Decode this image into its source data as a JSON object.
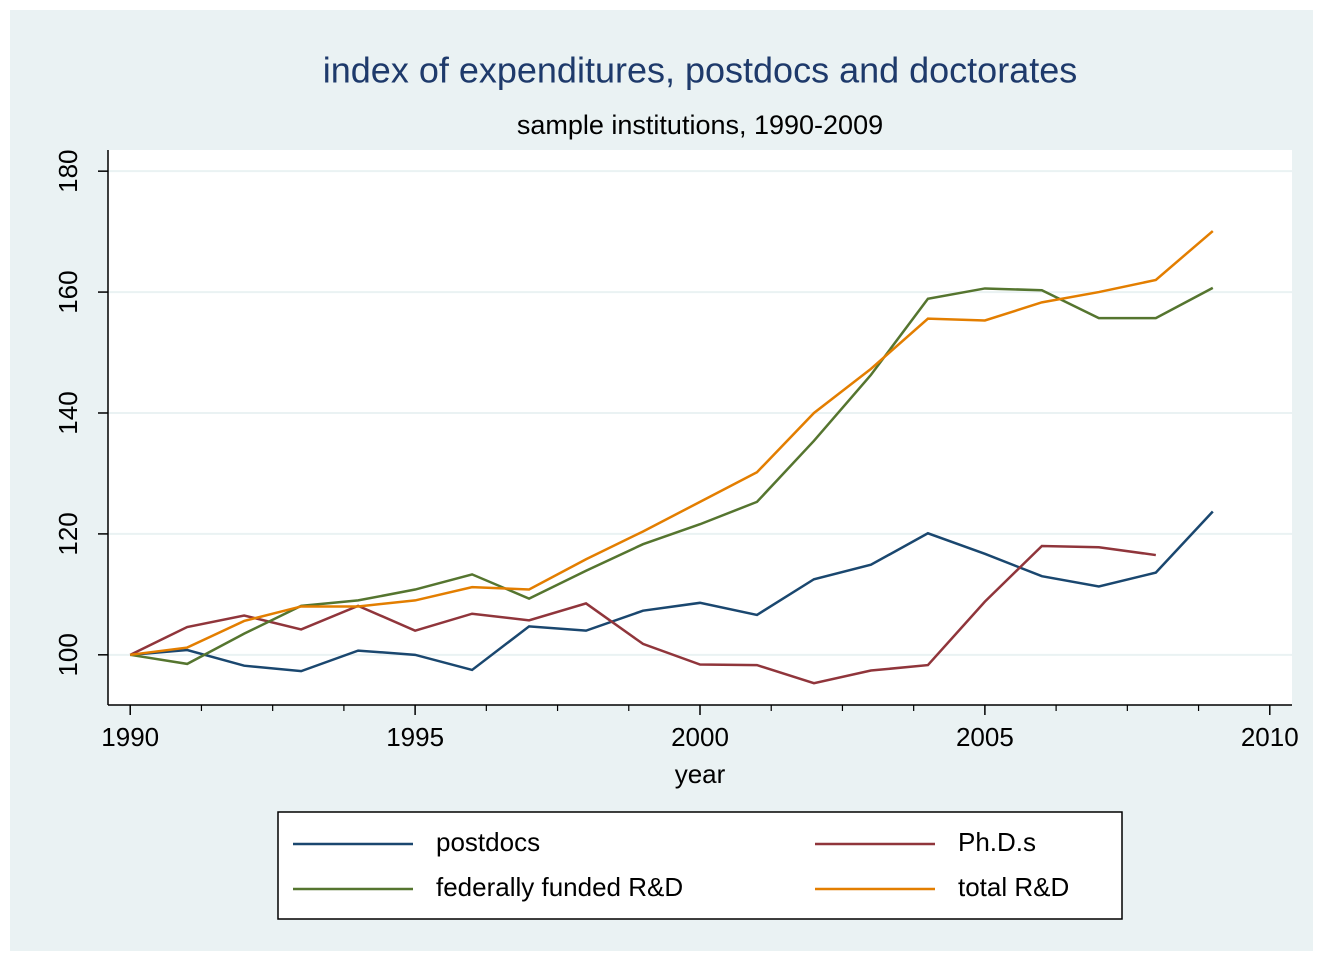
{
  "chart_data": {
    "type": "line",
    "title": "index of expenditures, postdocs and doctorates",
    "subtitle": "sample institutions, 1990-2009",
    "x_label": "year",
    "x": [
      1990,
      1991,
      1992,
      1993,
      1994,
      1995,
      1996,
      1997,
      1998,
      1999,
      2000,
      2001,
      2002,
      2003,
      2004,
      2005,
      2006,
      2007,
      2008,
      2009
    ],
    "series": [
      {
        "name": "postdocs",
        "color": "#1a476f",
        "values": [
          100,
          100.8,
          98.2,
          97.3,
          100.7,
          100,
          97.5,
          104.7,
          104,
          107.3,
          108.6,
          106.6,
          112.5,
          114.9,
          120.1,
          116.7,
          113,
          111.3,
          113.6,
          123.7
        ]
      },
      {
        "name": "Ph.D.s",
        "color": "#90353b",
        "values": [
          100,
          104.6,
          106.5,
          104.2,
          108.1,
          104,
          106.8,
          105.7,
          108.5,
          101.8,
          98.4,
          98.3,
          95.3,
          97.4,
          98.3,
          108.8,
          118,
          117.8,
          116.5,
          null
        ]
      },
      {
        "name": "federally funded R&D",
        "color": "#55752f",
        "values": [
          100,
          98.5,
          103.5,
          108.1,
          109,
          110.8,
          113.3,
          109.3,
          113.9,
          118.3,
          121.6,
          125.3,
          135.4,
          146.3,
          158.9,
          160.6,
          160.3,
          155.7,
          155.7,
          160.7
        ]
      },
      {
        "name": "total R&D",
        "color": "#e37e00",
        "values": [
          100,
          101.2,
          105.6,
          108,
          108,
          109,
          111.2,
          110.8,
          115.8,
          120.4,
          125.3,
          130.2,
          140,
          147.3,
          155.6,
          155.3,
          158.3,
          160,
          162,
          170.1
        ]
      }
    ],
    "xlim": [
      1989.61,
      2010.39
    ],
    "xticks": [
      1990,
      1995,
      2000,
      2005,
      2010
    ],
    "ylim": [
      91.7,
      183.5
    ],
    "yticks": [
      100,
      120,
      140,
      160,
      180
    ],
    "grid": true
  }
}
